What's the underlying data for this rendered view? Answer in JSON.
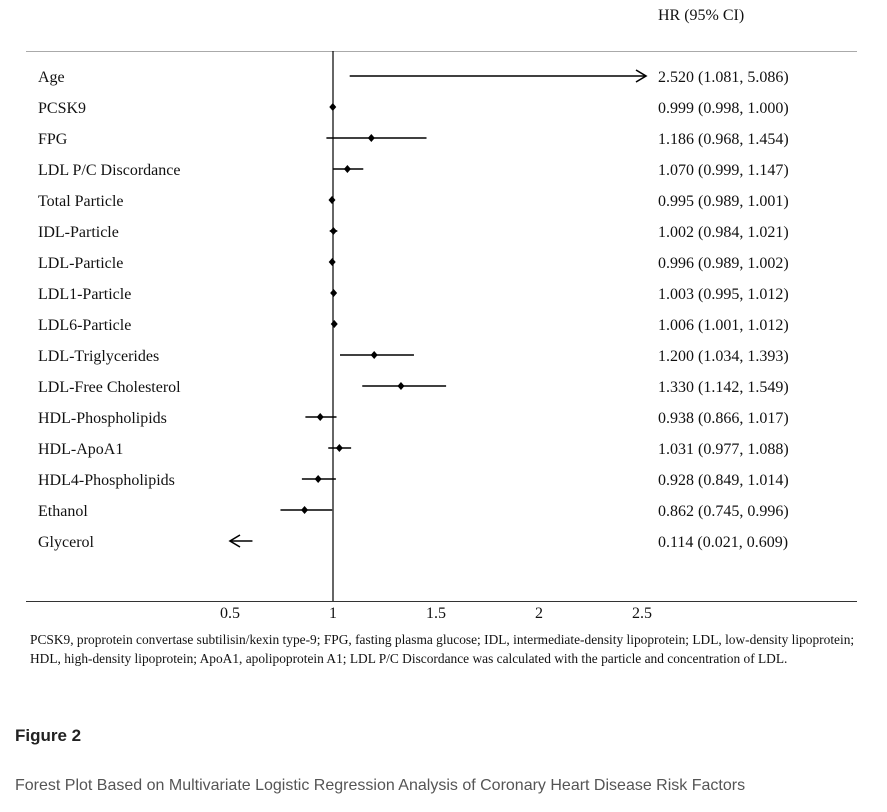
{
  "chart_data": {
    "type": "forest",
    "column_header": "HR (95% CI)",
    "reference_line": 1,
    "xlim": [
      0,
      2.5
    ],
    "xticks": [
      0.5,
      1,
      1.5,
      2,
      2.5
    ],
    "xtick_labels": [
      "0.5",
      "1",
      "1.5",
      "2",
      "2.5"
    ],
    "rows": [
      {
        "label": "Age",
        "hr": 2.52,
        "lower": 1.081,
        "upper": 5.086,
        "ci_text": "2.520 (1.081, 5.086)",
        "truncated": "right"
      },
      {
        "label": "PCSK9",
        "hr": 0.999,
        "lower": 0.998,
        "upper": 1.0,
        "ci_text": "0.999 (0.998, 1.000)"
      },
      {
        "label": "FPG",
        "hr": 1.186,
        "lower": 0.968,
        "upper": 1.454,
        "ci_text": "1.186 (0.968, 1.454)"
      },
      {
        "label": "LDL P/C Discordance",
        "hr": 1.07,
        "lower": 0.999,
        "upper": 1.147,
        "ci_text": "1.070 (0.999, 1.147)"
      },
      {
        "label": "Total Particle",
        "hr": 0.995,
        "lower": 0.989,
        "upper": 1.001,
        "ci_text": "0.995 (0.989, 1.001)"
      },
      {
        "label": "IDL-Particle",
        "hr": 1.002,
        "lower": 0.984,
        "upper": 1.021,
        "ci_text": "1.002 (0.984, 1.021)"
      },
      {
        "label": "LDL-Particle",
        "hr": 0.996,
        "lower": 0.989,
        "upper": 1.002,
        "ci_text": "0.996 (0.989, 1.002)"
      },
      {
        "label": "LDL1-Particle",
        "hr": 1.003,
        "lower": 0.995,
        "upper": 1.012,
        "ci_text": "1.003 (0.995, 1.012)"
      },
      {
        "label": "LDL6-Particle",
        "hr": 1.006,
        "lower": 1.001,
        "upper": 1.012,
        "ci_text": "1.006 (1.001, 1.012)"
      },
      {
        "label": "LDL-Triglycerides",
        "hr": 1.2,
        "lower": 1.034,
        "upper": 1.393,
        "ci_text": "1.200 (1.034, 1.393)"
      },
      {
        "label": "LDL-Free Cholesterol",
        "hr": 1.33,
        "lower": 1.142,
        "upper": 1.549,
        "ci_text": "1.330 (1.142, 1.549)"
      },
      {
        "label": "HDL-Phospholipids",
        "hr": 0.938,
        "lower": 0.866,
        "upper": 1.017,
        "ci_text": "0.938 (0.866, 1.017)"
      },
      {
        "label": "HDL-ApoA1",
        "hr": 1.031,
        "lower": 0.977,
        "upper": 1.088,
        "ci_text": "1.031 (0.977, 1.088)"
      },
      {
        "label": "HDL4-Phospholipids",
        "hr": 0.928,
        "lower": 0.849,
        "upper": 1.014,
        "ci_text": "0.928 (0.849, 1.014)"
      },
      {
        "label": "Ethanol",
        "hr": 0.862,
        "lower": 0.745,
        "upper": 0.996,
        "ci_text": "0.862 (0.745, 0.996)"
      },
      {
        "label": "Glycerol",
        "hr": 0.114,
        "lower": 0.021,
        "upper": 0.609,
        "ci_text": "0.114 (0.021, 0.609)",
        "truncated": "left"
      }
    ]
  },
  "footnote": "PCSK9, proprotein convertase subtilisin/kexin type-9; FPG, fasting plasma glucose; IDL, intermediate-density lipoprotein; LDL, low-density lipoprotein; HDL, high-density lipoprotein; ApoA1, apolipoprotein A1; LDL P/C Discordance was calculated with the particle and concentration of LDL.",
  "figure": {
    "label": "Figure 2",
    "caption": "Forest Plot Based on Multivariate Logistic Regression Analysis of Coronary Heart Disease Risk Factors"
  }
}
